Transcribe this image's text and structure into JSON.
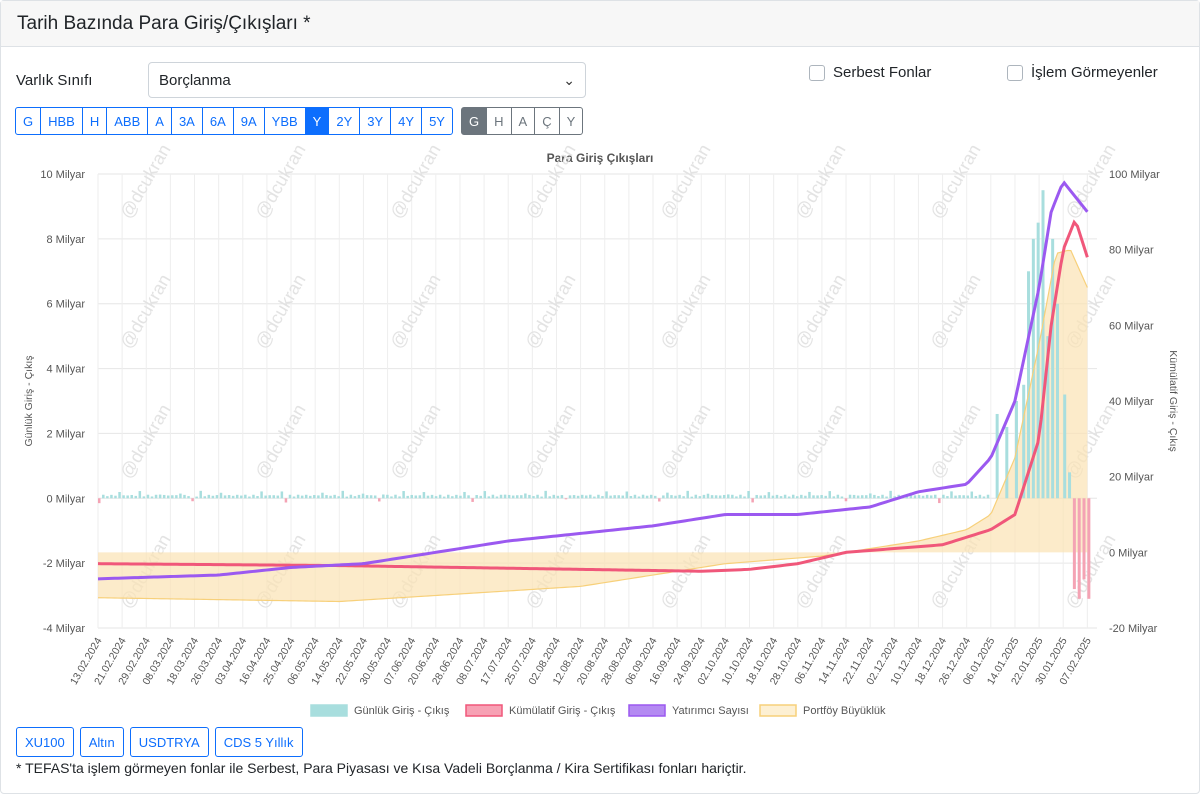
{
  "header": {
    "title": "Tarih Bazında Para Giriş/Çıkışları *"
  },
  "filters": {
    "asset_label": "Varlık Sınıfı",
    "asset_value": "Borçlanma",
    "serbest": "Serbest Fonlar",
    "islem": "İşlem Görmeyenler"
  },
  "periods": [
    {
      "label": "G",
      "active": false
    },
    {
      "label": "HBB",
      "active": false
    },
    {
      "label": "H",
      "active": false
    },
    {
      "label": "ABB",
      "active": false
    },
    {
      "label": "A",
      "active": false
    },
    {
      "label": "3A",
      "active": false
    },
    {
      "label": "6A",
      "active": false
    },
    {
      "label": "9A",
      "active": false
    },
    {
      "label": "YBB",
      "active": false
    },
    {
      "label": "Y",
      "active": true
    },
    {
      "label": "2Y",
      "active": false
    },
    {
      "label": "3Y",
      "active": false
    },
    {
      "label": "4Y",
      "active": false
    },
    {
      "label": "5Y",
      "active": false
    }
  ],
  "granularity": [
    {
      "label": "G",
      "active": true
    },
    {
      "label": "H",
      "active": false
    },
    {
      "label": "A",
      "active": false
    },
    {
      "label": "Ç",
      "active": false
    },
    {
      "label": "Y",
      "active": false
    }
  ],
  "compare_buttons": [
    "XU100",
    "Altın",
    "USDTRYA",
    "CDS 5 Yıllık"
  ],
  "footnote": "* TEFAS'ta işlem görmeyen fonlar ile Serbest, Para Piyasası ve Kısa Vadeli Borçlanma / Kira Sertifikası fonları hariçtir.",
  "watermark": "@dcukran",
  "chart_data": {
    "type": "bar+line",
    "title": "Para Giriş Çıkışları",
    "ylabel_left": "Günlük Giriş - Çıkış",
    "ylabel_right": "Kümülatif Giriş - Çıkış",
    "left_ticks": [
      "10 Milyar",
      "8 Milyar",
      "6 Milyar",
      "4 Milyar",
      "2 Milyar",
      "0 Milyar",
      "-2 Milyar",
      "-4 Milyar"
    ],
    "right_ticks": [
      "100 Milyar",
      "80 Milyar",
      "60 Milyar",
      "40 Milyar",
      "20 Milyar",
      "0 Milyar",
      "-20 Milyar"
    ],
    "ylim_left": [
      -4,
      10
    ],
    "ylim_right": [
      -20,
      100
    ],
    "x_labels": [
      "13.02.2024",
      "21.02.2024",
      "29.02.2024",
      "08.03.2024",
      "18.03.2024",
      "26.03.2024",
      "03.04.2024",
      "16.04.2024",
      "25.04.2024",
      "06.05.2024",
      "14.05.2024",
      "22.05.2024",
      "30.05.2024",
      "07.06.2024",
      "20.06.2024",
      "28.06.2024",
      "08.07.2024",
      "17.07.2024",
      "25.07.2024",
      "02.08.2024",
      "12.08.2024",
      "20.08.2024",
      "28.08.2024",
      "06.09.2024",
      "16.09.2024",
      "24.09.2024",
      "02.10.2024",
      "10.10.2024",
      "18.10.2024",
      "28.10.2024",
      "06.11.2024",
      "14.11.2024",
      "22.11.2024",
      "02.12.2024",
      "10.12.2024",
      "18.12.2024",
      "26.12.2024",
      "06.01.2025",
      "14.01.2025",
      "22.01.2025",
      "30.01.2025",
      "07.02.2025"
    ],
    "legend": [
      "Günlük Giriş - Çıkış",
      "Kümülatif Giriş - Çıkış",
      "Yatırımcı Sayısı",
      "Portföy Büyüklük"
    ],
    "colors": {
      "daily": "#a8dede",
      "daily_neg": "#f4a3b4",
      "cumulative": "#f0577a",
      "investors": "#9b59f0",
      "portfolio": "#f7d07a"
    },
    "series": [
      {
        "name": "Kümülatif Giriş - Çıkış",
        "axis": "right",
        "key_points": [
          [
            0,
            -3
          ],
          [
            10,
            -3.5
          ],
          [
            20,
            -4.5
          ],
          [
            25,
            -5
          ],
          [
            27,
            -4.5
          ],
          [
            29,
            -3
          ],
          [
            31,
            0
          ],
          [
            33,
            1
          ],
          [
            35,
            2
          ],
          [
            36,
            4
          ],
          [
            37,
            6
          ],
          [
            38,
            10
          ],
          [
            39,
            30
          ],
          [
            39.5,
            60
          ],
          [
            40,
            80
          ],
          [
            40.5,
            88
          ],
          [
            41,
            78
          ]
        ]
      },
      {
        "name": "Yatırımcı Sayısı",
        "axis": "right",
        "key_points": [
          [
            0,
            -7
          ],
          [
            5,
            -6
          ],
          [
            8,
            -4
          ],
          [
            11,
            -3
          ],
          [
            14,
            0
          ],
          [
            17,
            3
          ],
          [
            20,
            5
          ],
          [
            23,
            7
          ],
          [
            26,
            10
          ],
          [
            29,
            10
          ],
          [
            32,
            12
          ],
          [
            34,
            16
          ],
          [
            36,
            18
          ],
          [
            37,
            25
          ],
          [
            38,
            40
          ],
          [
            39,
            70
          ],
          [
            39.5,
            90
          ],
          [
            40,
            98
          ],
          [
            41,
            90
          ]
        ]
      },
      {
        "name": "Portföy Büyüklük",
        "axis": "right",
        "key_points": [
          [
            0,
            -12
          ],
          [
            10,
            -13
          ],
          [
            20,
            -9
          ],
          [
            26,
            -3
          ],
          [
            30,
            -1
          ],
          [
            34,
            3
          ],
          [
            36,
            6
          ],
          [
            37,
            10
          ],
          [
            38,
            25
          ],
          [
            39,
            55
          ],
          [
            39.7,
            79
          ],
          [
            40.3,
            80
          ],
          [
            41,
            70
          ]
        ]
      },
      {
        "name": "Günlük Giriş - Çıkış",
        "axis": "left",
        "peaks": [
          [
            37.2,
            2.6
          ],
          [
            37.6,
            2.2
          ],
          [
            38,
            3
          ],
          [
            38.3,
            3.5
          ],
          [
            38.5,
            7
          ],
          [
            38.7,
            8
          ],
          [
            38.9,
            8.5
          ],
          [
            39.1,
            9.5
          ],
          [
            39.3,
            5
          ],
          [
            39.5,
            8
          ],
          [
            39.7,
            6
          ],
          [
            40,
            3.2
          ],
          [
            40.2,
            0.8
          ],
          [
            40.4,
            -2.8
          ],
          [
            40.6,
            -3.1
          ],
          [
            40.8,
            -2.5
          ],
          [
            41,
            -3.1
          ]
        ]
      }
    ]
  }
}
